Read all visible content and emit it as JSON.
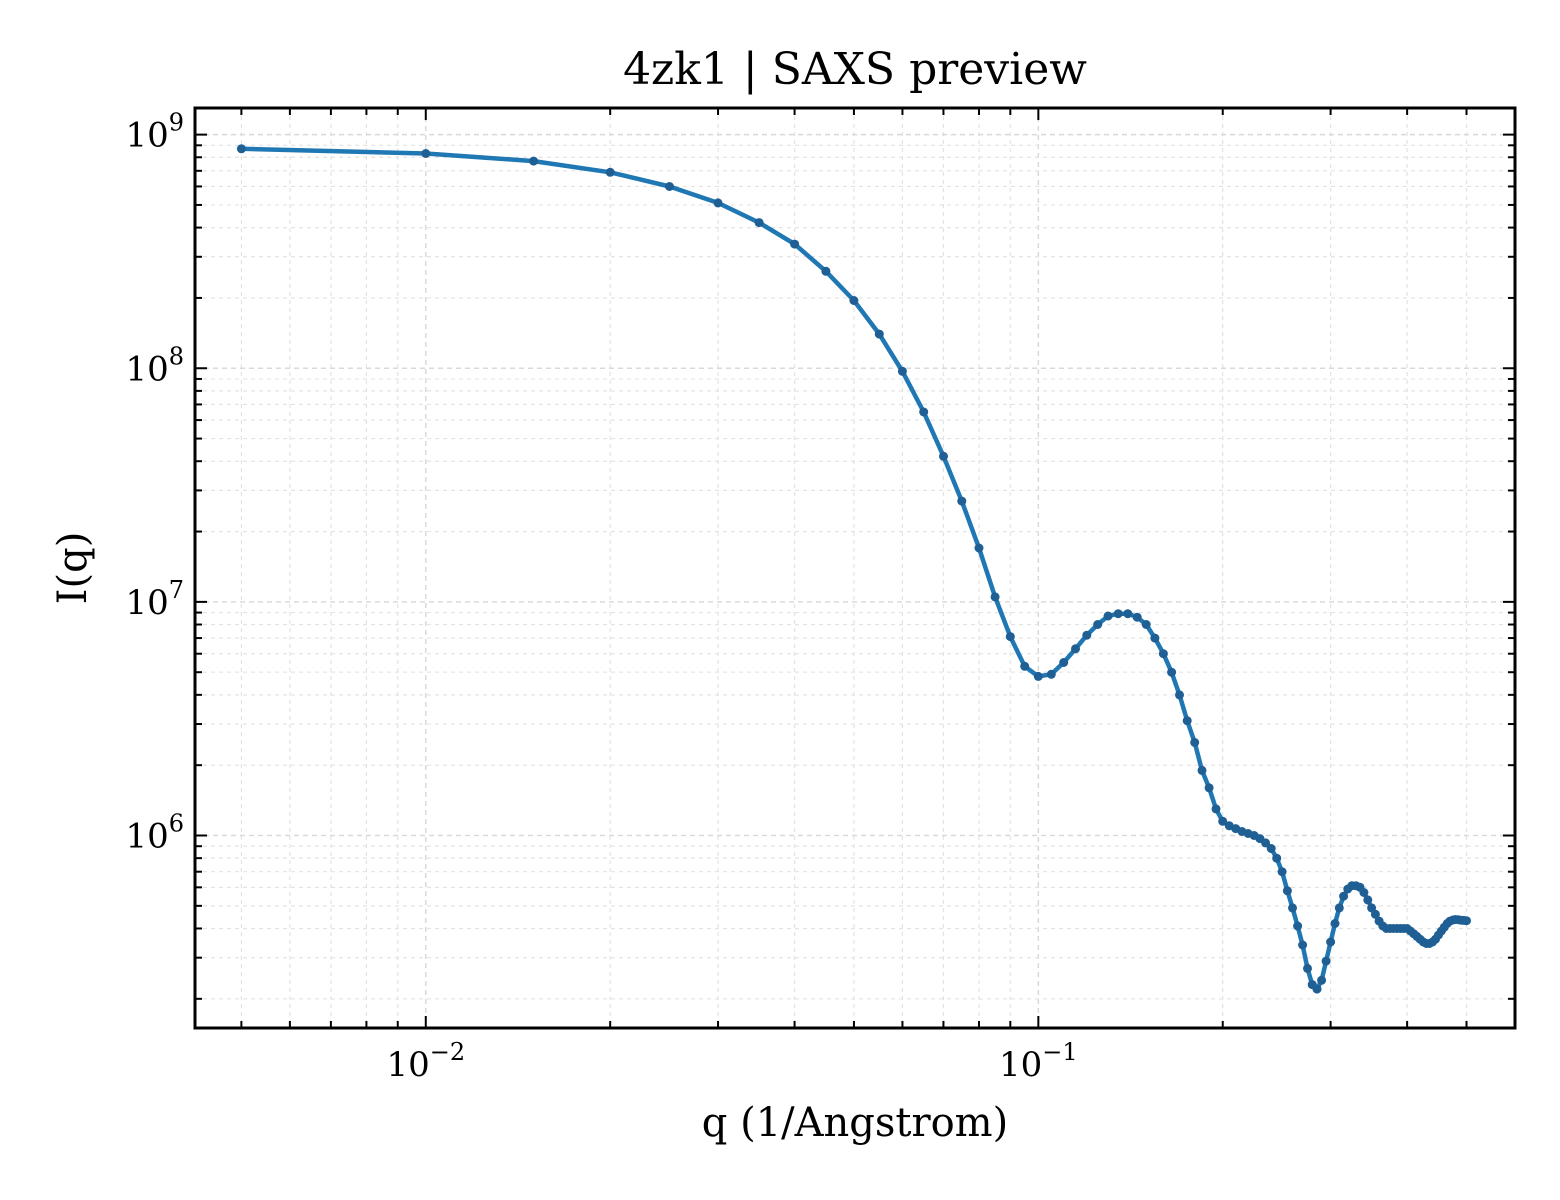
{
  "chart_data": {
    "type": "line",
    "title": "4zk1 | SAXS preview",
    "xlabel": "q (1/Angstrom)",
    "ylabel": "I(q)",
    "xscale": "log",
    "yscale": "log",
    "xlim": [
      0.0042,
      0.6
    ],
    "ylim": [
      150000,
      1300000000
    ],
    "x_ticks": [
      {
        "value": 0.01,
        "base": "10",
        "exp": "−2"
      },
      {
        "value": 0.1,
        "base": "10",
        "exp": "−1"
      }
    ],
    "y_ticks": [
      {
        "value": 1000000,
        "base": "10",
        "exp": "6"
      },
      {
        "value": 10000000,
        "base": "10",
        "exp": "7"
      },
      {
        "value": 100000000,
        "base": "10",
        "exp": "8"
      },
      {
        "value": 1000000000,
        "base": "10",
        "exp": "9"
      }
    ],
    "grid": true,
    "colors": {
      "line": "#1f77b4",
      "marker": "#1f5f94"
    },
    "series": [
      {
        "x": [
          0.005,
          0.01,
          0.015,
          0.02,
          0.025,
          0.03,
          0.035,
          0.04,
          0.045,
          0.05,
          0.055,
          0.06,
          0.065,
          0.07,
          0.075,
          0.08,
          0.085,
          0.09,
          0.095,
          0.1,
          0.105,
          0.11,
          0.115,
          0.12,
          0.125,
          0.13,
          0.135,
          0.14,
          0.145,
          0.15,
          0.155,
          0.16,
          0.165,
          0.17,
          0.175,
          0.18,
          0.185,
          0.19,
          0.195,
          0.2,
          0.205,
          0.21,
          0.215,
          0.22,
          0.225,
          0.23,
          0.235,
          0.24,
          0.245,
          0.25,
          0.255,
          0.26,
          0.265,
          0.27,
          0.275,
          0.28,
          0.285,
          0.29,
          0.295,
          0.3,
          0.305,
          0.31,
          0.315,
          0.32,
          0.325,
          0.33,
          0.335,
          0.34,
          0.345,
          0.35,
          0.355,
          0.36,
          0.365,
          0.37,
          0.375,
          0.38,
          0.385,
          0.39,
          0.395,
          0.4,
          0.405,
          0.41,
          0.415,
          0.42,
          0.425,
          0.43,
          0.435,
          0.44,
          0.445,
          0.45,
          0.455,
          0.46,
          0.465,
          0.47,
          0.475,
          0.48,
          0.485,
          0.49,
          0.495,
          0.5
        ],
        "values": [
          870000000,
          830000000,
          770000000,
          690000000,
          600000000,
          510000000,
          420000000,
          340000000,
          260000000,
          195000000,
          140000000,
          97000000,
          65000000,
          42000000,
          27000000,
          17000000,
          10500000,
          7100000,
          5300000,
          4800000,
          4900000,
          5500000,
          6300000,
          7200000,
          8000000,
          8700000,
          8900000,
          8900000,
          8600000,
          8000000,
          7000000,
          6000000,
          5000000,
          4000000,
          3100000,
          2500000,
          1900000,
          1600000,
          1300000,
          1150000,
          1100000,
          1070000,
          1040000,
          1020000,
          1000000,
          970000,
          930000,
          880000,
          800000,
          700000,
          580000,
          490000,
          410000,
          340000,
          270000,
          230000,
          220000,
          240000,
          290000,
          350000,
          420000,
          490000,
          550000,
          590000,
          610000,
          610000,
          600000,
          570000,
          530000,
          490000,
          460000,
          430000,
          410000,
          400000,
          400000,
          400000,
          400000,
          400000,
          400000,
          400000,
          390000,
          380000,
          370000,
          360000,
          350000,
          345000,
          345000,
          350000,
          360000,
          375000,
          390000,
          405000,
          420000,
          430000,
          435000,
          437000,
          436000,
          434000,
          433000,
          432000
        ]
      }
    ]
  }
}
